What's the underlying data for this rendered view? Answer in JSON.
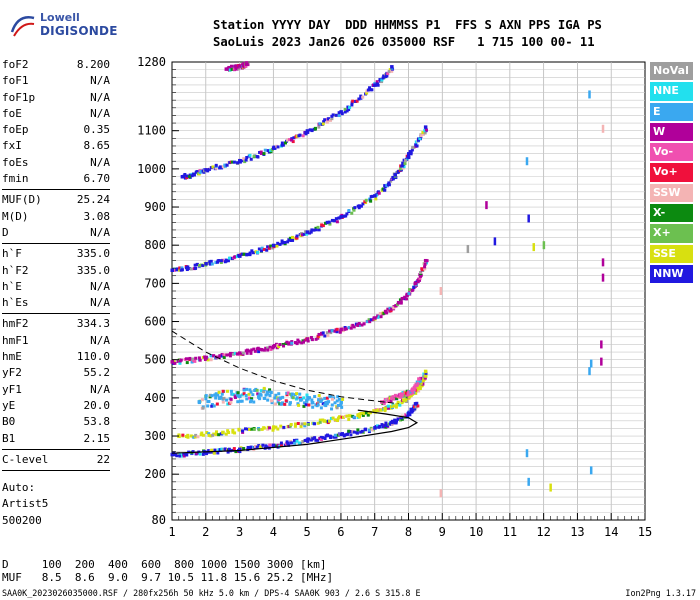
{
  "logo": {
    "line1": "Lowell",
    "line2": "DIGISONDE"
  },
  "header": {
    "line1": "Station YYYY DAY  DDD HHMMSS P1  FFS S AXN PPS IGA PS",
    "line2": "SaoLuis 2023 Jan26 026 035000 RSF   1 715 100 00- 11"
  },
  "params": [
    [
      {
        "k": "foF2",
        "v": "8.200"
      },
      {
        "k": "foF1",
        "v": "N/A"
      },
      {
        "k": "foF1p",
        "v": "N/A"
      },
      {
        "k": "foE",
        "v": "N/A"
      },
      {
        "k": "foEp",
        "v": "0.35"
      },
      {
        "k": "fxI",
        "v": "8.65"
      },
      {
        "k": "foEs",
        "v": "N/A"
      },
      {
        "k": "fmin",
        "v": "6.70"
      }
    ],
    [
      {
        "k": "MUF(D)",
        "v": "25.24"
      },
      {
        "k": "M(D)",
        "v": "3.08"
      },
      {
        "k": "D",
        "v": "N/A"
      }
    ],
    [
      {
        "k": "h`F",
        "v": "335.0"
      },
      {
        "k": "h`F2",
        "v": "335.0"
      },
      {
        "k": "h`E",
        "v": "N/A"
      },
      {
        "k": "h`Es",
        "v": "N/A"
      }
    ],
    [
      {
        "k": "hmF2",
        "v": "334.3"
      },
      {
        "k": "hmF1",
        "v": "N/A"
      },
      {
        "k": "hmE",
        "v": "110.0"
      },
      {
        "k": "yF2",
        "v": "55.2"
      },
      {
        "k": "yF1",
        "v": "N/A"
      },
      {
        "k": "yE",
        "v": "20.0"
      },
      {
        "k": "B0",
        "v": "53.8"
      },
      {
        "k": "B1",
        "v": "2.15"
      }
    ],
    [
      {
        "k": "C-level",
        "v": "22"
      }
    ]
  ],
  "auto": {
    "l1": "Auto:",
    "l2": "Artist5",
    "l3": "500200"
  },
  "legend": [
    {
      "label": "NoVal",
      "color": "#9e9e9e"
    },
    {
      "label": "NNE",
      "color": "#22e0ee"
    },
    {
      "label": "E",
      "color": "#3aa8f0"
    },
    {
      "label": "W",
      "color": "#b0009a"
    },
    {
      "label": "Vo-",
      "color": "#f050b0"
    },
    {
      "label": "Vo+",
      "color": "#f0103c"
    },
    {
      "label": "SSW",
      "color": "#f4b4b4"
    },
    {
      "label": "X-",
      "color": "#0c8a10"
    },
    {
      "label": "X+",
      "color": "#6cc050"
    },
    {
      "label": "SSE",
      "color": "#d8e010"
    },
    {
      "label": "NNW",
      "color": "#2018e0"
    }
  ],
  "freq_table": {
    "line1": "D     100  200  400  600  800 1000 1500 3000 [km]",
    "line2": "MUF   8.5  8.6  9.0  9.7 10.5 11.8 15.6 25.2 [MHz]"
  },
  "footer": "SAA0K_2023026035000.RSF / 280fx256h 50 kHz 5.0 km / DPS-4 SAA0K 903 / 2.6 S 315.8 E",
  "version": "Ion2Png 1.3.17",
  "chart_data": {
    "type": "scatter",
    "title": "",
    "xlabel": "",
    "ylabel": "",
    "xlim": [
      1,
      15
    ],
    "ylim": [
      80,
      1280
    ],
    "x_ticks": [
      1,
      2,
      3,
      4,
      5,
      6,
      7,
      8,
      9,
      10,
      11,
      12,
      13,
      14,
      15
    ],
    "y_ticks": [
      80,
      200,
      300,
      400,
      500,
      600,
      700,
      800,
      900,
      1000,
      1100,
      1280
    ],
    "grid": true,
    "traces": [
      {
        "name": "F2 1st hop",
        "color": "#2018e0",
        "points": [
          [
            1,
            252
          ],
          [
            2,
            258
          ],
          [
            3,
            266
          ],
          [
            4,
            276
          ],
          [
            5,
            290
          ],
          [
            6,
            305
          ],
          [
            7,
            322
          ],
          [
            7.5,
            336
          ],
          [
            8,
            360
          ],
          [
            8.2,
            385
          ]
        ]
      },
      {
        "name": "F2 1st hop X",
        "color": "#d8e010",
        "points": [
          [
            1.2,
            300
          ],
          [
            2.5,
            310
          ],
          [
            4,
            322
          ],
          [
            5.5,
            340
          ],
          [
            6.5,
            355
          ],
          [
            7.3,
            372
          ],
          [
            7.9,
            395
          ],
          [
            8.3,
            430
          ],
          [
            8.5,
            470
          ]
        ]
      },
      {
        "name": "F2 2nd hop",
        "color": "#b0009a",
        "points": [
          [
            1,
            495
          ],
          [
            2,
            505
          ],
          [
            3,
            518
          ],
          [
            4,
            535
          ],
          [
            5,
            555
          ],
          [
            6,
            580
          ],
          [
            7,
            610
          ],
          [
            7.7,
            650
          ],
          [
            8.2,
            700
          ],
          [
            8.5,
            760
          ]
        ]
      },
      {
        "name": "F2 3rd hop",
        "color": "#2018e0",
        "points": [
          [
            1,
            735
          ],
          [
            2,
            752
          ],
          [
            3,
            772
          ],
          [
            4,
            800
          ],
          [
            5,
            835
          ],
          [
            6,
            875
          ],
          [
            7,
            930
          ],
          [
            7.6,
            985
          ],
          [
            8,
            1040
          ],
          [
            8.5,
            1110
          ]
        ]
      },
      {
        "name": "F2 4th hop",
        "color": "#2018e0",
        "points": [
          [
            1.3,
            980
          ],
          [
            2,
            998
          ],
          [
            3,
            1022
          ],
          [
            4,
            1055
          ],
          [
            5,
            1100
          ],
          [
            6,
            1150
          ],
          [
            7,
            1220
          ],
          [
            7.5,
            1268
          ]
        ]
      },
      {
        "name": "F2 5th hop",
        "color": "#b0009a",
        "points": [
          [
            2.6,
            1262
          ],
          [
            3,
            1270
          ],
          [
            3.2,
            1275
          ]
        ]
      },
      {
        "name": "sporadic cloud",
        "color": "#3aa8f0",
        "points": [
          [
            1.8,
            390
          ],
          [
            2.4,
            400
          ],
          [
            3,
            405
          ],
          [
            3.6,
            410
          ],
          [
            4.2,
            400
          ],
          [
            4.8,
            395
          ],
          [
            5.4,
            392
          ],
          [
            6,
            388
          ]
        ]
      },
      {
        "name": "magenta cluster",
        "color": "#f050b0",
        "points": [
          [
            7.2,
            390
          ],
          [
            7.5,
            400
          ],
          [
            7.8,
            410
          ],
          [
            8.1,
            420
          ],
          [
            8.3,
            450
          ]
        ]
      }
    ],
    "profile_solid": [
      [
        1,
        255
      ],
      [
        3,
        262
      ],
      [
        5,
        278
      ],
      [
        6.5,
        298
      ],
      [
        7.5,
        312
      ],
      [
        8,
        322
      ],
      [
        8.25,
        335
      ],
      [
        8,
        348
      ],
      [
        7.3,
        358
      ],
      [
        6.5,
        368
      ]
    ],
    "profile_dashed": [
      [
        1,
        575
      ],
      [
        2,
        520
      ],
      [
        3,
        478
      ],
      [
        4,
        445
      ],
      [
        5,
        420
      ],
      [
        6,
        403
      ],
      [
        7,
        392
      ],
      [
        7.7,
        385
      ]
    ],
    "isolated_marks": [
      {
        "x": 8.95,
        "y": 680,
        "color": "#f4b4b4"
      },
      {
        "x": 8.95,
        "y": 150,
        "color": "#f4b4b4"
      },
      {
        "x": 9.75,
        "y": 790,
        "color": "#9e9e9e"
      },
      {
        "x": 10.3,
        "y": 905,
        "color": "#b0009a"
      },
      {
        "x": 10.55,
        "y": 810,
        "color": "#2018e0"
      },
      {
        "x": 11.5,
        "y": 1020,
        "color": "#3aa8f0"
      },
      {
        "x": 11.55,
        "y": 870,
        "color": "#2018e0"
      },
      {
        "x": 11.5,
        "y": 255,
        "color": "#3aa8f0"
      },
      {
        "x": 11.55,
        "y": 180,
        "color": "#3aa8f0"
      },
      {
        "x": 11.7,
        "y": 795,
        "color": "#d8e010"
      },
      {
        "x": 12,
        "y": 800,
        "color": "#6cc050"
      },
      {
        "x": 12.2,
        "y": 165,
        "color": "#d8e010"
      },
      {
        "x": 13.35,
        "y": 1195,
        "color": "#3aa8f0"
      },
      {
        "x": 13.4,
        "y": 490,
        "color": "#3aa8f0"
      },
      {
        "x": 13.35,
        "y": 470,
        "color": "#3aa8f0"
      },
      {
        "x": 13.4,
        "y": 210,
        "color": "#3aa8f0"
      },
      {
        "x": 13.75,
        "y": 755,
        "color": "#b0009a"
      },
      {
        "x": 13.75,
        "y": 715,
        "color": "#b0009a"
      },
      {
        "x": 13.7,
        "y": 540,
        "color": "#b0009a"
      },
      {
        "x": 13.7,
        "y": 495,
        "color": "#b0009a"
      },
      {
        "x": 13.75,
        "y": 1105,
        "color": "#f4b4b4"
      }
    ]
  }
}
